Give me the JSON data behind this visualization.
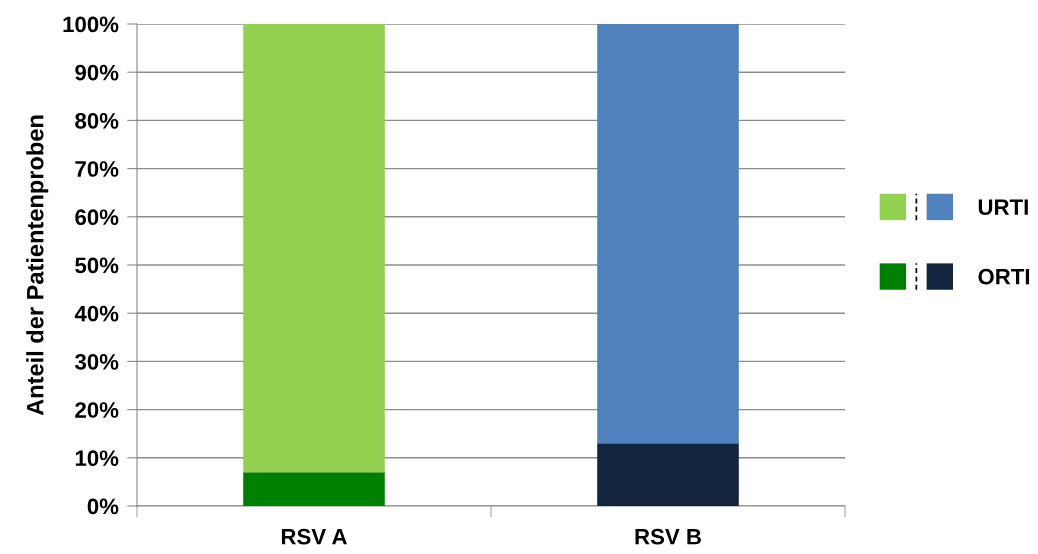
{
  "chart_data": {
    "type": "bar",
    "stacked": true,
    "ylabel": "Anteil der Patientenproben",
    "categories": [
      "RSV A",
      "RSV B"
    ],
    "series": [
      {
        "name": "ORTI",
        "colors": [
          "#008000",
          "#13253e"
        ],
        "values": [
          7,
          13
        ]
      },
      {
        "name": "URTI",
        "colors": [
          "#92d050",
          "#4f81bd"
        ],
        "values": [
          93,
          87
        ]
      }
    ],
    "ylim": [
      0,
      100
    ],
    "yticks": [
      {
        "value": 0,
        "label": "0%"
      },
      {
        "value": 10,
        "label": "10%"
      },
      {
        "value": 20,
        "label": "20%"
      },
      {
        "value": 30,
        "label": "30%"
      },
      {
        "value": 40,
        "label": "40%"
      },
      {
        "value": 50,
        "label": "50%"
      },
      {
        "value": 60,
        "label": "60%"
      },
      {
        "value": 70,
        "label": "70%"
      },
      {
        "value": 80,
        "label": "80%"
      },
      {
        "value": 90,
        "label": "90%"
      },
      {
        "value": 100,
        "label": "100%"
      }
    ],
    "grid": "y",
    "legend": "right"
  }
}
